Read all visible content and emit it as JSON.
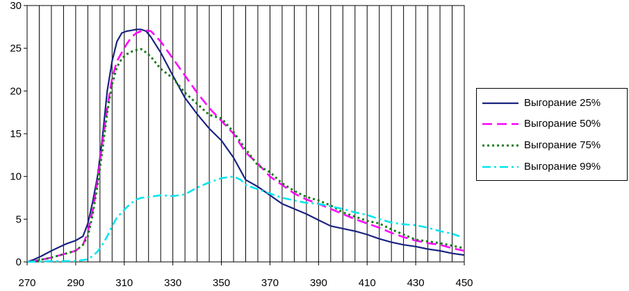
{
  "chart_data": {
    "type": "line",
    "title": "",
    "xlabel": "",
    "ylabel": "",
    "xlim": [
      270,
      450
    ],
    "ylim": [
      0,
      30
    ],
    "x_ticks": [
      "270",
      "290",
      "310",
      "330",
      "350",
      "370",
      "390",
      "410",
      "430",
      "450"
    ],
    "y_ticks": [
      "0",
      "5",
      "10",
      "15",
      "20",
      "25",
      "30"
    ],
    "grid": "vertical",
    "legend_position": "right",
    "series": [
      {
        "name": "Выгорание 25%",
        "color": "#1a237e",
        "style": "solid",
        "x": [
          270,
          273,
          276,
          280,
          283,
          286,
          290,
          293,
          295,
          297,
          299,
          301,
          303,
          305,
          307,
          309,
          311,
          313,
          315,
          317,
          319,
          321,
          325,
          330,
          335,
          340,
          345,
          350,
          355,
          360,
          365,
          370,
          375,
          380,
          385,
          390,
          395,
          400,
          405,
          410,
          415,
          420,
          425,
          430,
          435,
          440,
          445,
          450
        ],
        "y": [
          0,
          0.3,
          0.7,
          1.3,
          1.7,
          2.1,
          2.5,
          3.0,
          4.5,
          7.0,
          10.0,
          14.5,
          20.0,
          23.5,
          25.8,
          26.8,
          27.0,
          27.1,
          27.2,
          27.2,
          27.0,
          26.3,
          24.5,
          21.8,
          19.2,
          17.3,
          15.6,
          14.2,
          12.2,
          9.6,
          8.8,
          7.8,
          6.8,
          6.2,
          5.6,
          4.9,
          4.2,
          3.9,
          3.6,
          3.2,
          2.7,
          2.3,
          2.0,
          1.8,
          1.5,
          1.3,
          1.0,
          0.8
        ]
      },
      {
        "name": "Выгорание 50%",
        "color": "#ff00ff",
        "style": "dashed",
        "x": [
          270,
          275,
          280,
          285,
          290,
          293,
          295,
          297,
          299,
          301,
          303,
          305,
          307,
          309,
          311,
          313,
          315,
          317,
          319,
          321,
          325,
          330,
          335,
          340,
          345,
          350,
          355,
          360,
          365,
          370,
          375,
          380,
          385,
          390,
          395,
          400,
          405,
          410,
          415,
          420,
          425,
          430,
          435,
          440,
          445,
          450
        ],
        "y": [
          0,
          0.2,
          0.5,
          0.9,
          1.3,
          2.0,
          3.5,
          6.0,
          9.5,
          14.0,
          18.0,
          21.5,
          23.5,
          24.5,
          25.5,
          26.3,
          26.8,
          27.0,
          27.1,
          27.0,
          25.8,
          23.8,
          21.8,
          19.8,
          18.0,
          16.5,
          15.0,
          12.8,
          11.5,
          10.0,
          9.0,
          8.0,
          7.3,
          6.8,
          6.2,
          5.6,
          5.0,
          4.5,
          4.0,
          3.4,
          2.9,
          2.5,
          2.2,
          2.0,
          1.6,
          1.3
        ]
      },
      {
        "name": "Выгорание 75%",
        "color": "#1b7a1b",
        "style": "dotted",
        "x": [
          270,
          275,
          280,
          285,
          290,
          293,
          295,
          297,
          299,
          301,
          303,
          305,
          307,
          309,
          311,
          313,
          315,
          317,
          319,
          321,
          325,
          330,
          335,
          340,
          345,
          350,
          355,
          360,
          365,
          370,
          375,
          380,
          385,
          390,
          395,
          400,
          405,
          410,
          415,
          420,
          425,
          430,
          435,
          440,
          445,
          450
        ],
        "y": [
          0,
          0.2,
          0.5,
          0.9,
          1.3,
          2.0,
          3.0,
          5.5,
          9.0,
          13.0,
          17.5,
          20.8,
          22.8,
          23.8,
          24.3,
          24.6,
          24.8,
          24.9,
          24.5,
          24.0,
          22.6,
          21.5,
          19.8,
          18.5,
          17.2,
          16.8,
          15.2,
          13.2,
          11.3,
          10.5,
          9.2,
          8.3,
          7.6,
          7.2,
          6.6,
          5.8,
          5.3,
          4.8,
          4.5,
          3.8,
          3.2,
          2.6,
          2.4,
          2.2,
          1.9,
          1.6
        ]
      },
      {
        "name": "Выгорание 99%",
        "color": "#00e5ee",
        "style": "dashdot",
        "x": [
          270,
          275,
          280,
          285,
          290,
          295,
          297,
          299,
          301,
          303,
          305,
          307,
          309,
          311,
          313,
          315,
          317,
          320,
          325,
          330,
          335,
          340,
          345,
          350,
          355,
          358,
          360,
          365,
          370,
          375,
          380,
          385,
          390,
          395,
          400,
          405,
          410,
          415,
          420,
          425,
          430,
          435,
          440,
          445,
          448
        ],
        "y": [
          0,
          0.05,
          0.1,
          0.1,
          0.1,
          0.3,
          0.7,
          1.2,
          2.0,
          3.0,
          4.2,
          5.2,
          5.8,
          6.4,
          6.9,
          7.3,
          7.5,
          7.6,
          7.8,
          7.7,
          7.9,
          8.7,
          9.3,
          9.8,
          10.0,
          9.6,
          9.0,
          8.5,
          8.0,
          7.5,
          7.2,
          6.9,
          6.8,
          6.5,
          6.2,
          5.8,
          5.5,
          5.0,
          4.6,
          4.4,
          4.3,
          4.0,
          3.6,
          3.3,
          3.0
        ]
      }
    ]
  }
}
